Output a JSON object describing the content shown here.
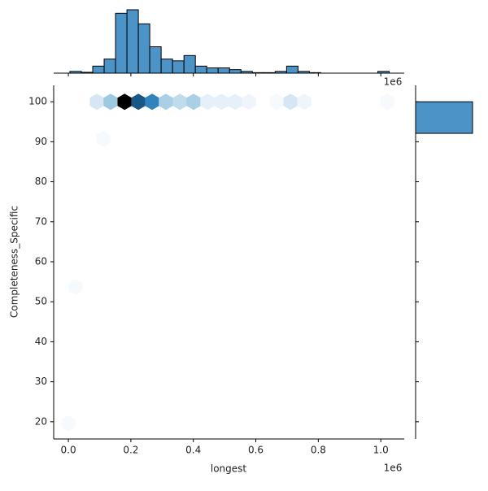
{
  "chart_data": {
    "type": "hexbin_joint",
    "x_label": "longest",
    "y_label": "Completeness_Specific",
    "x_offset_label": "1e6",
    "xlim": [
      -47000,
      1075000
    ],
    "xticks": [
      {
        "value": 0,
        "label": "0.0"
      },
      {
        "value": 200000,
        "label": "0.2"
      },
      {
        "value": 400000,
        "label": "0.4"
      },
      {
        "value": 600000,
        "label": "0.6"
      },
      {
        "value": 800000,
        "label": "0.8"
      },
      {
        "value": 1000000,
        "label": "1.0"
      }
    ],
    "ylim": [
      15.7,
      104.1
    ],
    "yticks": [
      20,
      30,
      40,
      50,
      60,
      70,
      80,
      90,
      100
    ],
    "color": "#4c94c8",
    "cmap": [
      "#ffffff",
      "#d6e6f4",
      "#9ecae1",
      "#4c94c8",
      "#1f77b4",
      "#17507a",
      "#000000"
    ],
    "hexbins": {
      "x": [
        91000,
        135000,
        180000,
        224000,
        268000,
        312000,
        357000,
        401000,
        445000,
        490000,
        534000,
        578000,
        667000,
        711000,
        755000,
        1021000,
        112000,
        23000,
        0
      ],
      "y": [
        100,
        100,
        100,
        100,
        100,
        100,
        100,
        100,
        100,
        100,
        100,
        100,
        100,
        100,
        100,
        100,
        90.7,
        53.7,
        19.6
      ],
      "values": [
        5,
        10,
        30,
        24,
        18,
        9,
        7,
        9,
        3,
        3,
        3,
        2,
        1,
        5,
        2,
        1,
        1,
        1,
        1
      ]
    },
    "top_hist": {
      "bins": [
        5000,
        41500,
        78000,
        114500,
        151000,
        187500,
        224000,
        260500,
        297000,
        333500,
        370000,
        406500,
        443000,
        479500,
        516000,
        552500,
        589000,
        625500,
        662000,
        698500,
        735000,
        771500,
        808000,
        844500,
        881000,
        917500,
        954000,
        990500,
        1027000
      ],
      "counts": [
        1,
        0.5,
        4,
        8,
        34,
        36,
        28,
        15,
        8,
        7,
        10,
        4,
        3,
        3,
        2,
        1,
        0.3,
        0.3,
        1,
        4,
        1,
        0.3,
        0,
        0,
        0,
        0,
        0,
        1
      ]
    },
    "right_hist": {
      "bins": [
        92.1,
        100
      ],
      "counts": [
        240
      ]
    }
  }
}
